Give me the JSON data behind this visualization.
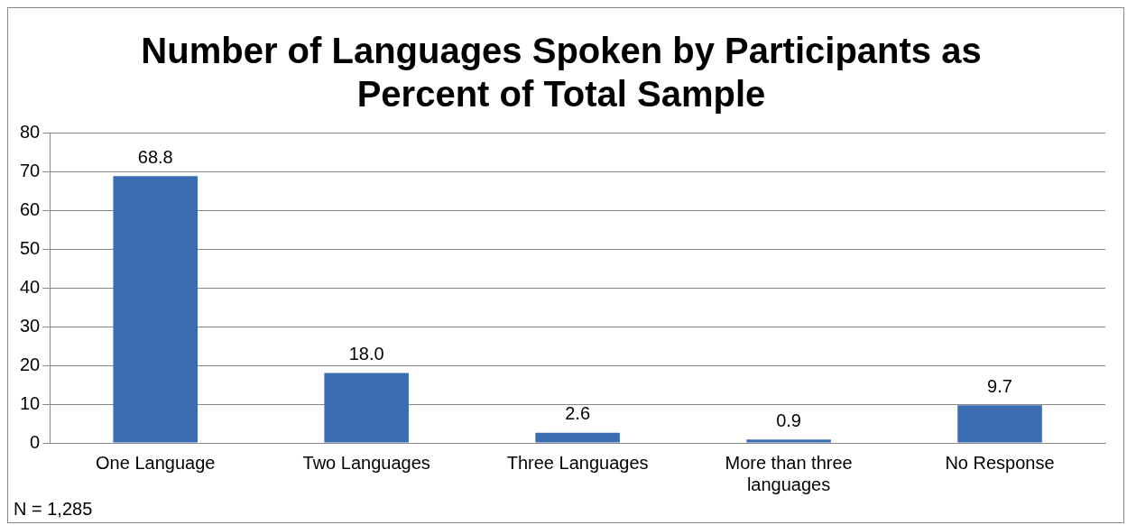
{
  "chart_data": {
    "type": "bar",
    "title": "Number of Languages Spoken by Participants as Percent of Total Sample",
    "categories": [
      "One Language",
      "Two Languages",
      "Three Languages",
      "More than three languages",
      "No Response"
    ],
    "values": [
      68.8,
      18.0,
      2.6,
      0.9,
      9.7
    ],
    "value_labels": [
      "68.8",
      "18.0",
      "2.6",
      "0.9",
      "9.7"
    ],
    "color": "#3b6db3",
    "ylim": [
      0,
      80
    ],
    "yticks": [
      0,
      10,
      20,
      30,
      40,
      50,
      60,
      70,
      80
    ],
    "grid": "y",
    "legend": false,
    "annotations": [
      "N = 1,285"
    ]
  }
}
